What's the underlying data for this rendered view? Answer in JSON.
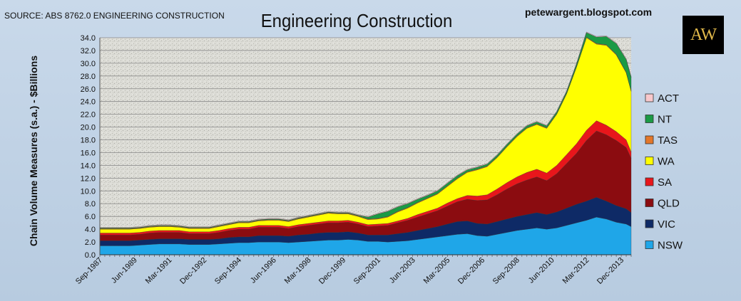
{
  "header": {
    "source": "SOURCE: ABS 8762.0 ENGINEERING CONSTRUCTION",
    "blog": "petewargent.blogspot.com",
    "logo_text": "AW"
  },
  "chart_data": {
    "type": "area",
    "stacked": true,
    "title": "Engineering Construction",
    "ylabel": "Chain Volume Measures (s.a.) - $Billions",
    "xlabel": "",
    "ylim": [
      0,
      34
    ],
    "y_ticks": [
      "0.0",
      "2.0",
      "4.0",
      "6.0",
      "8.0",
      "10.0",
      "12.0",
      "14.0",
      "16.0",
      "18.0",
      "20.0",
      "22.0",
      "24.0",
      "26.0",
      "28.0",
      "30.0",
      "32.0",
      "34.0"
    ],
    "x_tick_labels": [
      "Sep-1987",
      "Jun-1989",
      "Mar-1991",
      "Dec-1992",
      "Sep-1994",
      "Jun-1996",
      "Mar-1998",
      "Dec-1999",
      "Sep-2001",
      "Jun-2003",
      "Mar-2005",
      "Dec-2006",
      "Sep-2008",
      "Jun-2010",
      "Mar-2012",
      "Dec-2013"
    ],
    "x_tick_quarter_index": [
      0,
      7,
      14,
      21,
      28,
      35,
      42,
      49,
      56,
      63,
      70,
      77,
      84,
      91,
      98,
      105
    ],
    "grid": "horizontal",
    "legend_position": "right",
    "x": [
      "Sep-1987",
      "Mar-1988",
      "Sep-1988",
      "Mar-1989",
      "Sep-1989",
      "Mar-1990",
      "Sep-1990",
      "Mar-1991",
      "Sep-1991",
      "Mar-1992",
      "Sep-1992",
      "Mar-1993",
      "Sep-1993",
      "Mar-1994",
      "Sep-1994",
      "Mar-1995",
      "Sep-1995",
      "Mar-1996",
      "Sep-1996",
      "Mar-1997",
      "Sep-1997",
      "Mar-1998",
      "Sep-1998",
      "Mar-1999",
      "Sep-1999",
      "Mar-2000",
      "Sep-2000",
      "Mar-2001",
      "Sep-2001",
      "Mar-2002",
      "Sep-2002",
      "Mar-2003",
      "Sep-2003",
      "Mar-2004",
      "Sep-2004",
      "Mar-2005",
      "Sep-2005",
      "Mar-2006",
      "Sep-2006",
      "Mar-2007",
      "Sep-2007",
      "Mar-2008",
      "Sep-2008",
      "Mar-2009",
      "Sep-2009",
      "Mar-2010",
      "Sep-2010",
      "Mar-2011",
      "Sep-2011",
      "Mar-2012",
      "Sep-2012",
      "Mar-2013",
      "Sep-2013",
      "Mar-2014",
      "Jun-2014"
    ],
    "series": [
      {
        "name": "NSW",
        "color": "#1fa6e8",
        "values": [
          1.4,
          1.4,
          1.4,
          1.4,
          1.5,
          1.6,
          1.7,
          1.7,
          1.7,
          1.6,
          1.6,
          1.6,
          1.7,
          1.8,
          1.9,
          1.9,
          2.0,
          2.0,
          2.0,
          1.9,
          2.0,
          2.1,
          2.2,
          2.3,
          2.3,
          2.4,
          2.3,
          2.1,
          2.1,
          2.0,
          2.1,
          2.2,
          2.4,
          2.6,
          2.8,
          3.0,
          3.2,
          3.3,
          3.0,
          2.9,
          3.2,
          3.5,
          3.8,
          4.0,
          4.2,
          4.0,
          4.2,
          4.6,
          5.0,
          5.4,
          5.9,
          5.6,
          5.1,
          4.8,
          4.4
        ]
      },
      {
        "name": "VIC",
        "color": "#0e2a66",
        "values": [
          0.8,
          0.8,
          0.8,
          0.8,
          0.8,
          0.8,
          0.8,
          0.8,
          0.8,
          0.8,
          0.8,
          0.8,
          0.8,
          0.9,
          0.9,
          0.9,
          1.0,
          1.0,
          1.0,
          1.0,
          1.1,
          1.1,
          1.2,
          1.2,
          1.2,
          1.2,
          1.1,
          1.0,
          1.0,
          1.1,
          1.2,
          1.3,
          1.4,
          1.5,
          1.6,
          1.8,
          2.0,
          2.0,
          1.9,
          1.9,
          2.0,
          2.1,
          2.2,
          2.3,
          2.4,
          2.3,
          2.5,
          2.7,
          2.9,
          3.0,
          3.1,
          2.8,
          2.6,
          2.4,
          2.2
        ]
      },
      {
        "name": "QLD",
        "color": "#8b0c10",
        "values": [
          0.9,
          0.9,
          0.9,
          0.9,
          0.9,
          1.0,
          1.0,
          1.0,
          1.0,
          0.9,
          0.9,
          0.9,
          1.0,
          1.1,
          1.2,
          1.2,
          1.3,
          1.3,
          1.3,
          1.2,
          1.3,
          1.4,
          1.4,
          1.5,
          1.5,
          1.5,
          1.4,
          1.3,
          1.4,
          1.5,
          1.7,
          1.9,
          2.1,
          2.3,
          2.5,
          2.8,
          3.1,
          3.4,
          3.6,
          3.8,
          4.2,
          4.7,
          5.1,
          5.4,
          5.6,
          5.3,
          6.0,
          7.0,
          8.0,
          9.5,
          10.4,
          10.4,
          10.2,
          9.6,
          8.5
        ]
      },
      {
        "name": "SA",
        "color": "#e8161b",
        "values": [
          0.3,
          0.3,
          0.3,
          0.3,
          0.3,
          0.3,
          0.3,
          0.3,
          0.3,
          0.3,
          0.3,
          0.3,
          0.3,
          0.3,
          0.3,
          0.3,
          0.3,
          0.3,
          0.3,
          0.3,
          0.3,
          0.3,
          0.3,
          0.3,
          0.3,
          0.3,
          0.3,
          0.3,
          0.3,
          0.3,
          0.3,
          0.3,
          0.4,
          0.4,
          0.4,
          0.5,
          0.5,
          0.6,
          0.7,
          0.8,
          0.9,
          1.0,
          1.1,
          1.2,
          1.2,
          1.2,
          1.3,
          1.4,
          1.5,
          1.6,
          1.6,
          1.5,
          1.4,
          1.2,
          1.0
        ]
      },
      {
        "name": "WA",
        "color": "#ffff00",
        "values": [
          0.6,
          0.6,
          0.6,
          0.6,
          0.6,
          0.6,
          0.6,
          0.6,
          0.5,
          0.5,
          0.5,
          0.5,
          0.6,
          0.6,
          0.7,
          0.7,
          0.7,
          0.8,
          0.8,
          0.8,
          0.9,
          1.0,
          1.1,
          1.2,
          1.1,
          1.0,
          0.9,
          0.8,
          0.8,
          1.0,
          1.4,
          1.6,
          1.8,
          2.0,
          2.2,
          2.6,
          3.1,
          3.6,
          4.1,
          4.4,
          4.9,
          5.6,
          6.3,
          6.9,
          7.0,
          7.0,
          8.0,
          9.5,
          12.0,
          14.5,
          12.0,
          12.5,
          12.0,
          10.5,
          9.5
        ]
      },
      {
        "name": "TAS",
        "color": "#e3772a",
        "values": [
          0.1,
          0.1,
          0.1,
          0.1,
          0.1,
          0.1,
          0.1,
          0.1,
          0.1,
          0.1,
          0.1,
          0.1,
          0.1,
          0.1,
          0.1,
          0.1,
          0.1,
          0.1,
          0.1,
          0.1,
          0.1,
          0.1,
          0.1,
          0.1,
          0.1,
          0.1,
          0.1,
          0.1,
          0.1,
          0.1,
          0.1,
          0.1,
          0.1,
          0.1,
          0.1,
          0.1,
          0.1,
          0.1,
          0.1,
          0.1,
          0.1,
          0.1,
          0.1,
          0.1,
          0.1,
          0.1,
          0.1,
          0.1,
          0.1,
          0.1,
          0.1,
          0.1,
          0.1,
          0.1,
          0.1
        ]
      },
      {
        "name": "NT",
        "color": "#1b9a45",
        "values": [
          0.1,
          0.1,
          0.1,
          0.1,
          0.1,
          0.1,
          0.1,
          0.1,
          0.1,
          0.1,
          0.1,
          0.1,
          0.1,
          0.1,
          0.1,
          0.1,
          0.1,
          0.1,
          0.1,
          0.1,
          0.1,
          0.1,
          0.1,
          0.1,
          0.1,
          0.1,
          0.1,
          0.3,
          0.7,
          0.8,
          0.7,
          0.6,
          0.5,
          0.4,
          0.4,
          0.4,
          0.4,
          0.3,
          0.3,
          0.3,
          0.3,
          0.3,
          0.3,
          0.3,
          0.3,
          0.3,
          0.3,
          0.3,
          0.4,
          0.7,
          1.0,
          1.3,
          1.7,
          2.0,
          2.1
        ]
      },
      {
        "name": "ACT",
        "color": "#f8c8cc",
        "values": [
          0.1,
          0.1,
          0.1,
          0.1,
          0.1,
          0.1,
          0.1,
          0.1,
          0.1,
          0.1,
          0.1,
          0.1,
          0.1,
          0.1,
          0.1,
          0.1,
          0.1,
          0.1,
          0.1,
          0.1,
          0.1,
          0.1,
          0.1,
          0.1,
          0.1,
          0.1,
          0.1,
          0.1,
          0.1,
          0.1,
          0.1,
          0.1,
          0.1,
          0.1,
          0.1,
          0.1,
          0.1,
          0.1,
          0.1,
          0.1,
          0.1,
          0.1,
          0.1,
          0.1,
          0.1,
          0.1,
          0.1,
          0.1,
          0.1,
          0.1,
          0.1,
          0.1,
          0.1,
          0.1,
          0.1
        ]
      }
    ],
    "legend_order": [
      "ACT",
      "NT",
      "TAS",
      "WA",
      "SA",
      "QLD",
      "VIC",
      "NSW"
    ]
  }
}
